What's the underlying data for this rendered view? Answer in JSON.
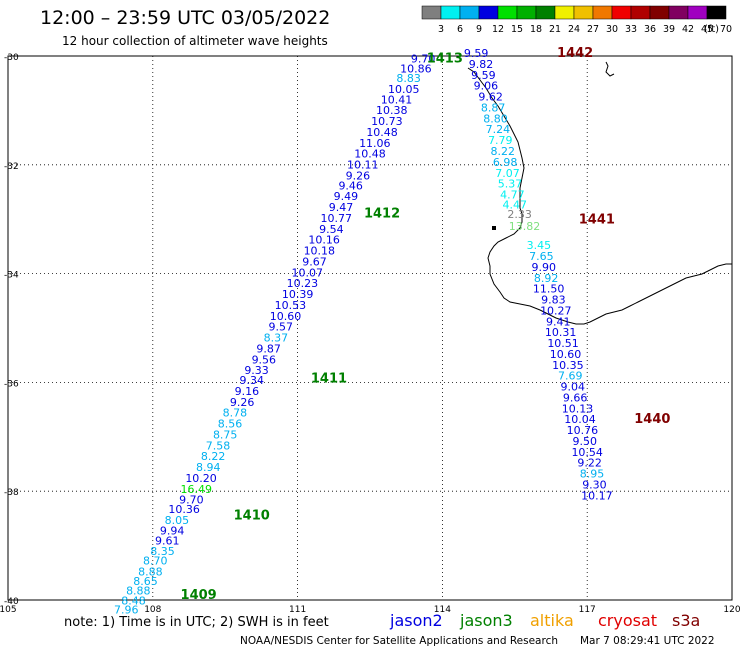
{
  "header": {
    "title": "12:00 – 23:59 UTC 03/05/2022",
    "subtitle": "12 hour collection of altimeter wave heights"
  },
  "colorbar": {
    "unit": "(ft)",
    "labels": [
      "3",
      "6",
      "9",
      "12",
      "15",
      "18",
      "21",
      "24",
      "27",
      "30",
      "33",
      "36",
      "39",
      "42",
      "45",
      "70"
    ],
    "colors": [
      "#7f7f7f",
      "#00f0f0",
      "#00b0f0",
      "#0000e0",
      "#00e000",
      "#00b000",
      "#008000",
      "#f0f000",
      "#f0c000",
      "#f07800",
      "#f00000",
      "#b00000",
      "#800000",
      "#800060",
      "#a000c0",
      "#000000"
    ]
  },
  "axes": {
    "lon_ticks": [
      "105",
      "108",
      "111",
      "114",
      "117",
      "120"
    ],
    "lat_ticks": [
      "-30",
      "-32",
      "-34",
      "-36",
      "-38",
      "-40"
    ],
    "lon_range": [
      105,
      120
    ],
    "lat_range": [
      -30,
      -40
    ]
  },
  "passes": [
    {
      "label": "1442",
      "color": "#800000",
      "lon": 116.75,
      "lat": -30.02
    },
    {
      "label": "1441",
      "color": "#800000",
      "lon": 117.2,
      "lat": -33.08
    },
    {
      "label": "1440",
      "color": "#800000",
      "lon": 118.35,
      "lat": -36.75
    },
    {
      "label": "1413",
      "color": "#008000",
      "lon": 114.05,
      "lat": -30.12
    },
    {
      "label": "1412",
      "color": "#008000",
      "lon": 112.75,
      "lat": -32.97
    },
    {
      "label": "1411",
      "color": "#008000",
      "lon": 111.65,
      "lat": -36.0
    },
    {
      "label": "1410",
      "color": "#008000",
      "lon": 110.05,
      "lat": -38.52
    },
    {
      "label": "1409",
      "color": "#008000",
      "lon": 108.95,
      "lat": -39.98
    }
  ],
  "tracks": [
    {
      "name": "jason3",
      "values": [
        {
          "v": "9.70",
          "c": "#0000e0",
          "lon": 113.6,
          "lat": -30.12
        },
        {
          "v": "10.86",
          "c": "#0000e0",
          "lon": 113.45,
          "lat": -30.3
        },
        {
          "v": "8.83",
          "c": "#00b0f0",
          "lon": 113.3,
          "lat": -30.48
        },
        {
          "v": "10.05",
          "c": "#0000e0",
          "lon": 113.2,
          "lat": -30.68
        },
        {
          "v": "10.41",
          "c": "#0000e0",
          "lon": 113.05,
          "lat": -30.87
        },
        {
          "v": "10.38",
          "c": "#0000e0",
          "lon": 112.95,
          "lat": -31.07
        },
        {
          "v": "10.73",
          "c": "#0000e0",
          "lon": 112.85,
          "lat": -31.27
        },
        {
          "v": "10.48",
          "c": "#0000e0",
          "lon": 112.75,
          "lat": -31.47
        },
        {
          "v": "11.06",
          "c": "#0000e0",
          "lon": 112.6,
          "lat": -31.67
        },
        {
          "v": "10.48",
          "c": "#0000e0",
          "lon": 112.5,
          "lat": -31.87
        },
        {
          "v": "10.11",
          "c": "#0000e0",
          "lon": 112.35,
          "lat": -32.07
        },
        {
          "v": "9.26",
          "c": "#0000e0",
          "lon": 112.25,
          "lat": -32.27
        },
        {
          "v": "9.46",
          "c": "#0000e0",
          "lon": 112.1,
          "lat": -32.45
        },
        {
          "v": "9.49",
          "c": "#0000e0",
          "lon": 112.0,
          "lat": -32.65
        },
        {
          "v": "9.47",
          "c": "#0000e0",
          "lon": 111.9,
          "lat": -32.85
        },
        {
          "v": "10.77",
          "c": "#0000e0",
          "lon": 111.8,
          "lat": -33.05
        },
        {
          "v": "9.54",
          "c": "#0000e0",
          "lon": 111.7,
          "lat": -33.25
        },
        {
          "v": "10.16",
          "c": "#0000e0",
          "lon": 111.55,
          "lat": -33.45
        },
        {
          "v": "10.18",
          "c": "#0000e0",
          "lon": 111.45,
          "lat": -33.65
        },
        {
          "v": "9.67",
          "c": "#0000e0",
          "lon": 111.35,
          "lat": -33.85
        },
        {
          "v": "10.07",
          "c": "#0000e0",
          "lon": 111.2,
          "lat": -34.05
        },
        {
          "v": "10.23",
          "c": "#0000e0",
          "lon": 111.1,
          "lat": -34.25
        },
        {
          "v": "10.39",
          "c": "#0000e0",
          "lon": 111.0,
          "lat": -34.45
        },
        {
          "v": "10.53",
          "c": "#0000e0",
          "lon": 110.85,
          "lat": -34.65
        },
        {
          "v": "10.60",
          "c": "#0000e0",
          "lon": 110.75,
          "lat": -34.85
        },
        {
          "v": "9.57",
          "c": "#0000e0",
          "lon": 110.65,
          "lat": -35.05
        },
        {
          "v": "8.37",
          "c": "#00b0f0",
          "lon": 110.55,
          "lat": -35.25
        },
        {
          "v": "9.87",
          "c": "#0000e0",
          "lon": 110.4,
          "lat": -35.45
        },
        {
          "v": "9.56",
          "c": "#0000e0",
          "lon": 110.3,
          "lat": -35.65
        },
        {
          "v": "9.33",
          "c": "#0000e0",
          "lon": 110.15,
          "lat": -35.85
        },
        {
          "v": "9.34",
          "c": "#0000e0",
          "lon": 110.05,
          "lat": -36.03
        },
        {
          "v": "9.16",
          "c": "#0000e0",
          "lon": 109.95,
          "lat": -36.23
        },
        {
          "v": "9.26",
          "c": "#0000e0",
          "lon": 109.85,
          "lat": -36.43
        },
        {
          "v": "8.78",
          "c": "#00b0f0",
          "lon": 109.7,
          "lat": -36.63
        },
        {
          "v": "8.56",
          "c": "#00b0f0",
          "lon": 109.6,
          "lat": -36.83
        },
        {
          "v": "8.75",
          "c": "#00b0f0",
          "lon": 109.5,
          "lat": -37.03
        },
        {
          "v": "7.58",
          "c": "#00b0f0",
          "lon": 109.35,
          "lat": -37.23
        },
        {
          "v": "8.22",
          "c": "#00b0f0",
          "lon": 109.25,
          "lat": -37.43
        },
        {
          "v": "8.94",
          "c": "#00b0f0",
          "lon": 109.15,
          "lat": -37.63
        },
        {
          "v": "10.20",
          "c": "#0000e0",
          "lon": 109.0,
          "lat": -37.83
        },
        {
          "v": "16.49",
          "c": "#00e000",
          "lon": 108.9,
          "lat": -38.03
        },
        {
          "v": "9.70",
          "c": "#0000e0",
          "lon": 108.8,
          "lat": -38.23
        },
        {
          "v": "10.36",
          "c": "#0000e0",
          "lon": 108.65,
          "lat": -38.4
        },
        {
          "v": "8.05",
          "c": "#00b0f0",
          "lon": 108.5,
          "lat": -38.6
        },
        {
          "v": "9.94",
          "c": "#0000e0",
          "lon": 108.4,
          "lat": -38.8
        },
        {
          "v": "9.61",
          "c": "#0000e0",
          "lon": 108.3,
          "lat": -38.98
        },
        {
          "v": "8.35",
          "c": "#00b0f0",
          "lon": 108.2,
          "lat": -39.17
        },
        {
          "v": "8.70",
          "c": "#00b0f0",
          "lon": 108.05,
          "lat": -39.35
        },
        {
          "v": "8.88",
          "c": "#00b0f0",
          "lon": 107.95,
          "lat": -39.55
        },
        {
          "v": "8.65",
          "c": "#00b0f0",
          "lon": 107.85,
          "lat": -39.72
        },
        {
          "v": "8.88",
          "c": "#00b0f0",
          "lon": 107.7,
          "lat": -39.9
        },
        {
          "v": "8.48",
          "c": "#00b0f0",
          "lon": 107.6,
          "lat": -40.08
        },
        {
          "v": "7.96",
          "c": "#00b0f0",
          "lon": 107.45,
          "lat": -40.25
        }
      ]
    },
    {
      "name": "jason3-east",
      "values": [
        {
          "v": "9.59",
          "c": "#0000e0",
          "lon": 114.7,
          "lat": -30.02
        },
        {
          "v": "9.82",
          "c": "#0000e0",
          "lon": 114.8,
          "lat": -30.22
        },
        {
          "v": "9.59",
          "c": "#0000e0",
          "lon": 114.85,
          "lat": -30.42
        },
        {
          "v": "9.06",
          "c": "#0000e0",
          "lon": 114.9,
          "lat": -30.62
        },
        {
          "v": "9.62",
          "c": "#0000e0",
          "lon": 115.0,
          "lat": -30.82
        },
        {
          "v": "8.87",
          "c": "#00b0f0",
          "lon": 115.05,
          "lat": -31.02
        },
        {
          "v": "8.80",
          "c": "#00b0f0",
          "lon": 115.1,
          "lat": -31.22
        },
        {
          "v": "7.24",
          "c": "#00b0f0",
          "lon": 115.15,
          "lat": -31.42
        },
        {
          "v": "7.79",
          "c": "#00f0f0",
          "lon": 115.2,
          "lat": -31.62
        },
        {
          "v": "8.22",
          "c": "#00b0f0",
          "lon": 115.25,
          "lat": -31.82
        },
        {
          "v": "6.98",
          "c": "#00b0f0",
          "lon": 115.3,
          "lat": -32.02
        },
        {
          "v": "7.07",
          "c": "#00f0f0",
          "lon": 115.35,
          "lat": -32.22
        },
        {
          "v": "5.37",
          "c": "#00f0f0",
          "lon": 115.4,
          "lat": -32.42
        },
        {
          "v": "4.77",
          "c": "#00f0f0",
          "lon": 115.45,
          "lat": -32.62
        },
        {
          "v": "4.47",
          "c": "#00f0f0",
          "lon": 115.5,
          "lat": -32.8
        },
        {
          "v": "2.33",
          "c": "#7f7f7f",
          "lon": 115.6,
          "lat": -32.98
        },
        {
          "v": "13.82",
          "c": "#80e080",
          "lon": 115.7,
          "lat": -33.2
        },
        {
          "v": "3.45",
          "c": "#00f0f0",
          "lon": 116.0,
          "lat": -33.55
        },
        {
          "v": "7.65",
          "c": "#00b0f0",
          "lon": 116.05,
          "lat": -33.75
        },
        {
          "v": "9.90",
          "c": "#0000e0",
          "lon": 116.1,
          "lat": -33.95
        },
        {
          "v": "8.92",
          "c": "#00b0f0",
          "lon": 116.15,
          "lat": -34.15
        },
        {
          "v": "11.50",
          "c": "#0000e0",
          "lon": 116.2,
          "lat": -34.35
        },
        {
          "v": "9.83",
          "c": "#0000e0",
          "lon": 116.3,
          "lat": -34.55
        },
        {
          "v": "10.27",
          "c": "#0000e0",
          "lon": 116.35,
          "lat": -34.75
        },
        {
          "v": "9.41",
          "c": "#0000e0",
          "lon": 116.4,
          "lat": -34.95
        },
        {
          "v": "10.31",
          "c": "#0000e0",
          "lon": 116.45,
          "lat": -35.15
        },
        {
          "v": "10.51",
          "c": "#0000e0",
          "lon": 116.5,
          "lat": -35.35
        },
        {
          "v": "10.60",
          "c": "#0000e0",
          "lon": 116.55,
          "lat": -35.55
        },
        {
          "v": "10.35",
          "c": "#0000e0",
          "lon": 116.6,
          "lat": -35.75
        },
        {
          "v": "7.69",
          "c": "#00b0f0",
          "lon": 116.65,
          "lat": -35.95
        },
        {
          "v": "9.04",
          "c": "#0000e0",
          "lon": 116.7,
          "lat": -36.15
        },
        {
          "v": "9.66",
          "c": "#0000e0",
          "lon": 116.75,
          "lat": -36.35
        },
        {
          "v": "10.13",
          "c": "#0000e0",
          "lon": 116.8,
          "lat": -36.55
        },
        {
          "v": "10.04",
          "c": "#0000e0",
          "lon": 116.85,
          "lat": -36.75
        },
        {
          "v": "10.76",
          "c": "#0000e0",
          "lon": 116.9,
          "lat": -36.95
        },
        {
          "v": "9.50",
          "c": "#0000e0",
          "lon": 116.95,
          "lat": -37.15
        },
        {
          "v": "10.54",
          "c": "#0000e0",
          "lon": 117.0,
          "lat": -37.35
        },
        {
          "v": "9.22",
          "c": "#0000e0",
          "lon": 117.05,
          "lat": -37.55
        },
        {
          "v": "8.95",
          "c": "#00b0f0",
          "lon": 117.1,
          "lat": -37.75
        },
        {
          "v": "9.30",
          "c": "#0000e0",
          "lon": 117.15,
          "lat": -37.95
        },
        {
          "v": "10.17",
          "c": "#0000e0",
          "lon": 117.2,
          "lat": -38.15
        }
      ]
    }
  ],
  "footer": {
    "note": "note: 1) Time is in UTC; 2) SWH is in feet",
    "legend": [
      {
        "name": "jason2",
        "color": "#0000e0"
      },
      {
        "name": "jason3",
        "color": "#008000"
      },
      {
        "name": "altika",
        "color": "#f0a000"
      },
      {
        "name": "cryosat",
        "color": "#e00000"
      },
      {
        "name": "s3a",
        "color": "#800000"
      }
    ],
    "credit": "NOAA/NESDIS Center for Satellite Applications and Research",
    "timestamp": "Mar  7 08:29:41 UTC 2022"
  }
}
